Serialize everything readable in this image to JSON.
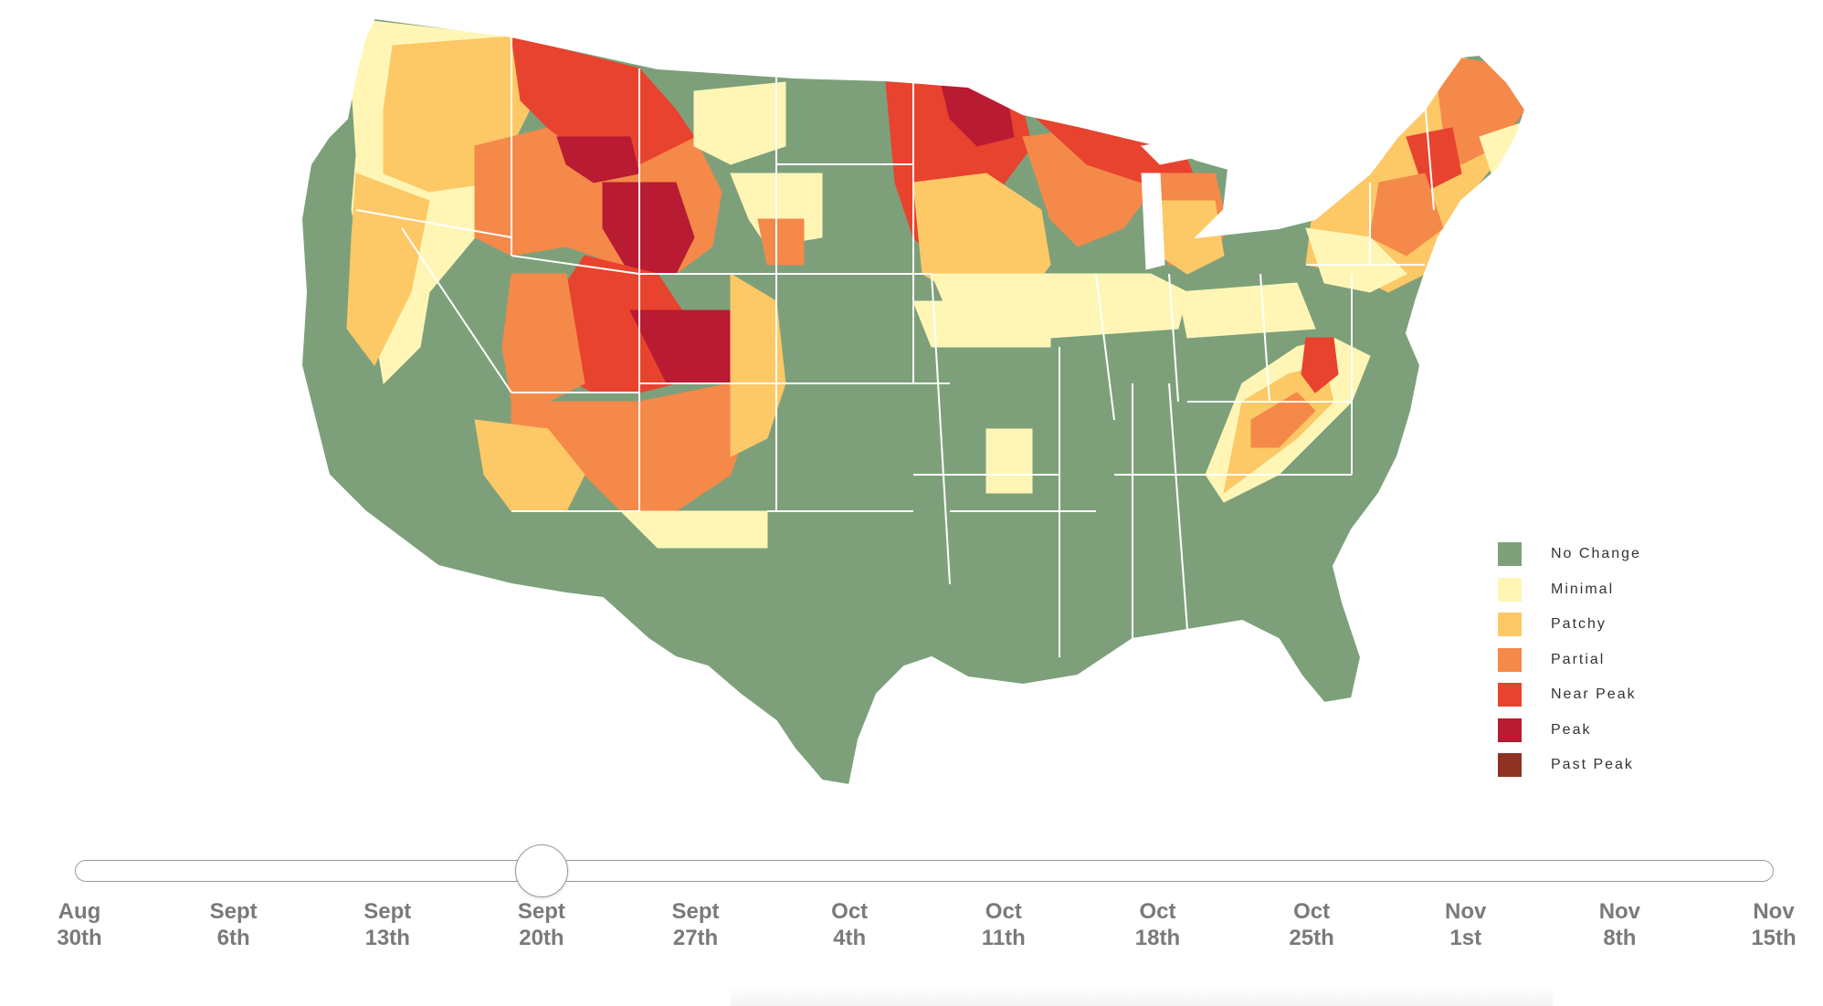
{
  "map": {
    "colors": {
      "no_change": "#7da07a",
      "minimal": "#fff6b6",
      "patchy": "#fdc866",
      "partial": "#f4894a",
      "near_peak": "#e8432e",
      "peak": "#b81b32",
      "past_peak": "#8f3223"
    },
    "border_color": "#ffffff"
  },
  "legend": {
    "items": [
      {
        "label": "No Change",
        "color": "#7da07a"
      },
      {
        "label": "Minimal",
        "color": "#fff6b6"
      },
      {
        "label": "Patchy",
        "color": "#fdc866"
      },
      {
        "label": "Partial",
        "color": "#f4894a"
      },
      {
        "label": "Near Peak",
        "color": "#e8432e"
      },
      {
        "label": "Peak",
        "color": "#b81b32"
      },
      {
        "label": "Past Peak",
        "color": "#8f3223"
      }
    ]
  },
  "timeline": {
    "selected_index": 3,
    "ticks": [
      {
        "line1": "Aug",
        "line2": "30th"
      },
      {
        "line1": "Sept",
        "line2": "6th"
      },
      {
        "line1": "Sept",
        "line2": "13th"
      },
      {
        "line1": "Sept",
        "line2": "20th"
      },
      {
        "line1": "Sept",
        "line2": "27th"
      },
      {
        "line1": "Oct",
        "line2": "4th"
      },
      {
        "line1": "Oct",
        "line2": "11th"
      },
      {
        "line1": "Oct",
        "line2": "18th"
      },
      {
        "line1": "Oct",
        "line2": "25th"
      },
      {
        "line1": "Nov",
        "line2": "1st"
      },
      {
        "line1": "Nov",
        "line2": "8th"
      },
      {
        "line1": "Nov",
        "line2": "15th"
      }
    ]
  }
}
